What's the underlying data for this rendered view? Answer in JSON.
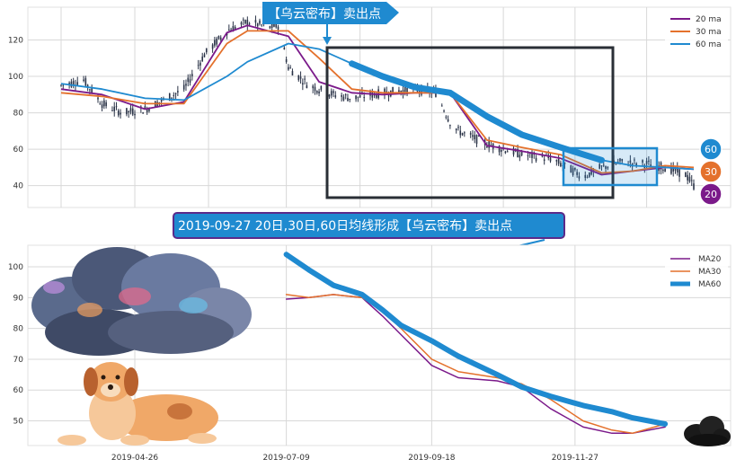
{
  "colors": {
    "ma20": "#7b1a8a",
    "ma30": "#e4712c",
    "ma60": "#1f8ad0",
    "candle": "#2a3347",
    "grid": "#d8d8d8",
    "box_dark": "#2a2f36",
    "box_blue": "#1f8ad0",
    "banner_fill": "#1f8ad0",
    "callout_fill": "#1f8ad0",
    "callout_border": "#5b2a8a"
  },
  "chart_data": [
    {
      "type": "line",
      "panel": "top",
      "title": "",
      "xlabel": "",
      "ylabel": "",
      "ylim": [
        28,
        138
      ],
      "grid": true,
      "legend_placement": "top-right",
      "y_ticks": [
        40,
        60,
        80,
        100,
        120
      ],
      "date_range": [
        "2019-03-21",
        "2020-01-24"
      ],
      "series": [
        {
          "name": "20 ma",
          "x": [
            "2019-03-21",
            "2019-04-10",
            "2019-05-01",
            "2019-05-20",
            "2019-06-10",
            "2019-06-20",
            "2019-07-10",
            "2019-07-25",
            "2019-08-10",
            "2019-08-25",
            "2019-09-10",
            "2019-09-27",
            "2019-10-15",
            "2019-11-01",
            "2019-11-20",
            "2019-12-10",
            "2019-12-25",
            "2020-01-10",
            "2020-01-24"
          ],
          "values": [
            93,
            90,
            82,
            86,
            124,
            128,
            122,
            97,
            91,
            90,
            91,
            91,
            62,
            59,
            55,
            46,
            48,
            50,
            49
          ]
        },
        {
          "name": "30 ma",
          "x": [
            "2019-03-21",
            "2019-04-10",
            "2019-05-01",
            "2019-05-20",
            "2019-06-10",
            "2019-06-20",
            "2019-07-10",
            "2019-07-25",
            "2019-08-10",
            "2019-08-25",
            "2019-09-10",
            "2019-09-27",
            "2019-10-15",
            "2019-11-01",
            "2019-11-20",
            "2019-12-10",
            "2019-12-25",
            "2020-01-10",
            "2020-01-24"
          ],
          "values": [
            91,
            89,
            85,
            85,
            118,
            125,
            125,
            110,
            93,
            91,
            91,
            91,
            65,
            61,
            57,
            47,
            48,
            51,
            50
          ]
        },
        {
          "name": "60 ma",
          "x": [
            "2019-03-21",
            "2019-04-10",
            "2019-05-01",
            "2019-05-20",
            "2019-06-10",
            "2019-06-20",
            "2019-07-10",
            "2019-07-25",
            "2019-08-10",
            "2019-08-25",
            "2019-09-10",
            "2019-09-27",
            "2019-10-15",
            "2019-11-01",
            "2019-11-20",
            "2019-12-10",
            "2019-12-25",
            "2020-01-10",
            "2020-01-24"
          ],
          "values": [
            96,
            93,
            88,
            87,
            100,
            108,
            118,
            115,
            107,
            100,
            94,
            91,
            78,
            68,
            61,
            54,
            51,
            50,
            49
          ]
        }
      ],
      "candles_approx": {
        "x": [
          "2019-03-21",
          "2019-04-01",
          "2019-04-10",
          "2019-04-20",
          "2019-05-01",
          "2019-05-10",
          "2019-05-20",
          "2019-05-30",
          "2019-06-10",
          "2019-06-20",
          "2019-07-01",
          "2019-07-05",
          "2019-07-10",
          "2019-07-20",
          "2019-08-01",
          "2019-08-10",
          "2019-08-20",
          "2019-09-01",
          "2019-09-10",
          "2019-09-20",
          "2019-09-27",
          "2019-10-01",
          "2019-10-15",
          "2019-11-01",
          "2019-11-15",
          "2019-12-01",
          "2019-12-10",
          "2019-12-20",
          "2020-01-01",
          "2020-01-10",
          "2020-01-20",
          "2020-01-24"
        ],
        "values": [
          95,
          98,
          85,
          80,
          82,
          87,
          93,
          112,
          125,
          130,
          127,
          128,
          105,
          95,
          90,
          88,
          90,
          92,
          93,
          91,
          75,
          70,
          63,
          57,
          55,
          45,
          50,
          53,
          52,
          50,
          46,
          40
        ]
      },
      "annotations": {
        "banner": "【乌云密布】卖出点",
        "badges": [
          "60",
          "30",
          "20"
        ]
      }
    },
    {
      "type": "line",
      "panel": "bottom",
      "title": "",
      "xlabel": "",
      "ylabel": "",
      "ylim": [
        42,
        107
      ],
      "grid": true,
      "legend_placement": "top-right",
      "y_ticks": [
        50,
        60,
        70,
        80,
        90,
        100
      ],
      "x_ticks": [
        "2019-04-26",
        "2019-07-09",
        "2019-09-18",
        "2019-11-27"
      ],
      "series": [
        {
          "name": "MA20",
          "x": [
            "2019-07-09",
            "2019-07-20",
            "2019-08-01",
            "2019-08-15",
            "2019-08-25",
            "2019-09-03",
            "2019-09-18",
            "2019-10-01",
            "2019-10-20",
            "2019-11-01",
            "2019-11-15",
            "2019-12-01",
            "2019-12-15",
            "2019-12-25",
            "2020-01-10"
          ],
          "values": [
            89.5,
            90,
            91,
            90,
            84,
            78,
            68,
            64,
            63,
            61,
            54,
            48,
            46,
            46,
            48
          ]
        },
        {
          "name": "MA30",
          "x": [
            "2019-07-09",
            "2019-07-20",
            "2019-08-01",
            "2019-08-15",
            "2019-08-25",
            "2019-09-03",
            "2019-09-18",
            "2019-10-01",
            "2019-10-20",
            "2019-11-01",
            "2019-11-15",
            "2019-12-01",
            "2019-12-15",
            "2019-12-25",
            "2020-01-10"
          ],
          "values": [
            91,
            90,
            91,
            90,
            86,
            80,
            70,
            66,
            64,
            62,
            57,
            50,
            47,
            46,
            49
          ]
        },
        {
          "name": "MA60",
          "x": [
            "2019-07-09",
            "2019-07-20",
            "2019-08-01",
            "2019-08-15",
            "2019-08-25",
            "2019-09-03",
            "2019-09-18",
            "2019-10-01",
            "2019-10-20",
            "2019-11-01",
            "2019-11-15",
            "2019-12-01",
            "2019-12-15",
            "2019-12-25",
            "2020-01-10"
          ],
          "values": [
            104,
            99,
            94,
            91,
            86,
            81,
            76,
            71,
            65,
            61,
            58,
            55,
            53,
            51,
            49
          ]
        }
      ],
      "annotations": {
        "callout": "2019-09-27 20日,30日,60日均线形成【乌云密布】卖出点"
      }
    }
  ]
}
